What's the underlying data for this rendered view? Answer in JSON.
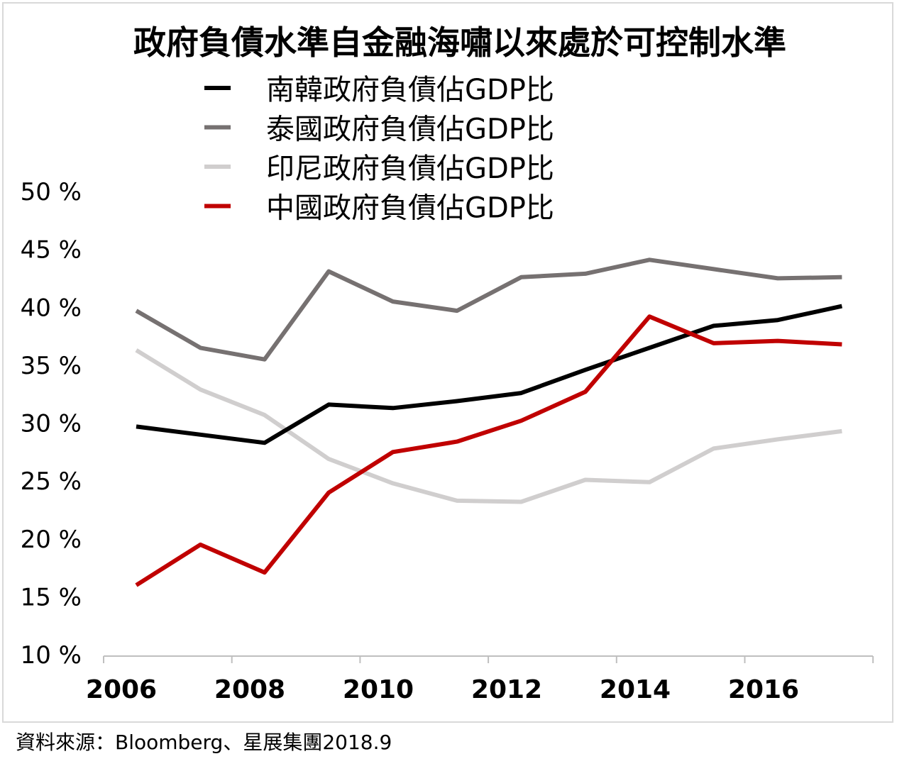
{
  "chart_data": {
    "type": "line",
    "title": "政府負債水準自金融海嘯以來處於可控制水準",
    "xlabel": "",
    "ylabel": "",
    "x": [
      2006,
      2007,
      2008,
      2009,
      2010,
      2011,
      2012,
      2013,
      2014,
      2015,
      2016,
      2017
    ],
    "x_tick_labels": [
      "2006",
      "2008",
      "2010",
      "2012",
      "2014",
      "2016"
    ],
    "y_tick_labels": [
      "50 %",
      "45 %",
      "40 %",
      "35 %",
      "30 %",
      "25 %",
      "20 %",
      "15 %",
      "10 %"
    ],
    "ylim": [
      10,
      50
    ],
    "grid": false,
    "legend_position": "top-center",
    "series": [
      {
        "name": "南韓政府負債佔GDP比",
        "color": "#000000",
        "values": [
          29.7,
          29.0,
          28.3,
          31.6,
          31.3,
          31.9,
          32.6,
          34.6,
          36.5,
          38.4,
          38.9,
          40.1
        ]
      },
      {
        "name": "泰國政府負債佔GDP比",
        "color": "#767171",
        "values": [
          39.7,
          36.5,
          35.5,
          43.1,
          40.5,
          39.7,
          42.6,
          42.9,
          44.1,
          43.3,
          42.5,
          42.6
        ]
      },
      {
        "name": "印尼政府負債佔GDP比",
        "color": "#d0cece",
        "values": [
          36.3,
          32.9,
          30.7,
          26.9,
          24.8,
          23.3,
          23.2,
          25.1,
          24.9,
          27.8,
          28.6,
          29.3
        ]
      },
      {
        "name": "中國政府負債佔GDP比",
        "color": "#c00000",
        "values": [
          16.0,
          19.5,
          17.1,
          24.0,
          27.5,
          28.4,
          30.2,
          32.7,
          39.2,
          36.9,
          37.1,
          36.8
        ]
      }
    ],
    "source": "資料來源：Bloomberg、星展集團2018.9"
  }
}
